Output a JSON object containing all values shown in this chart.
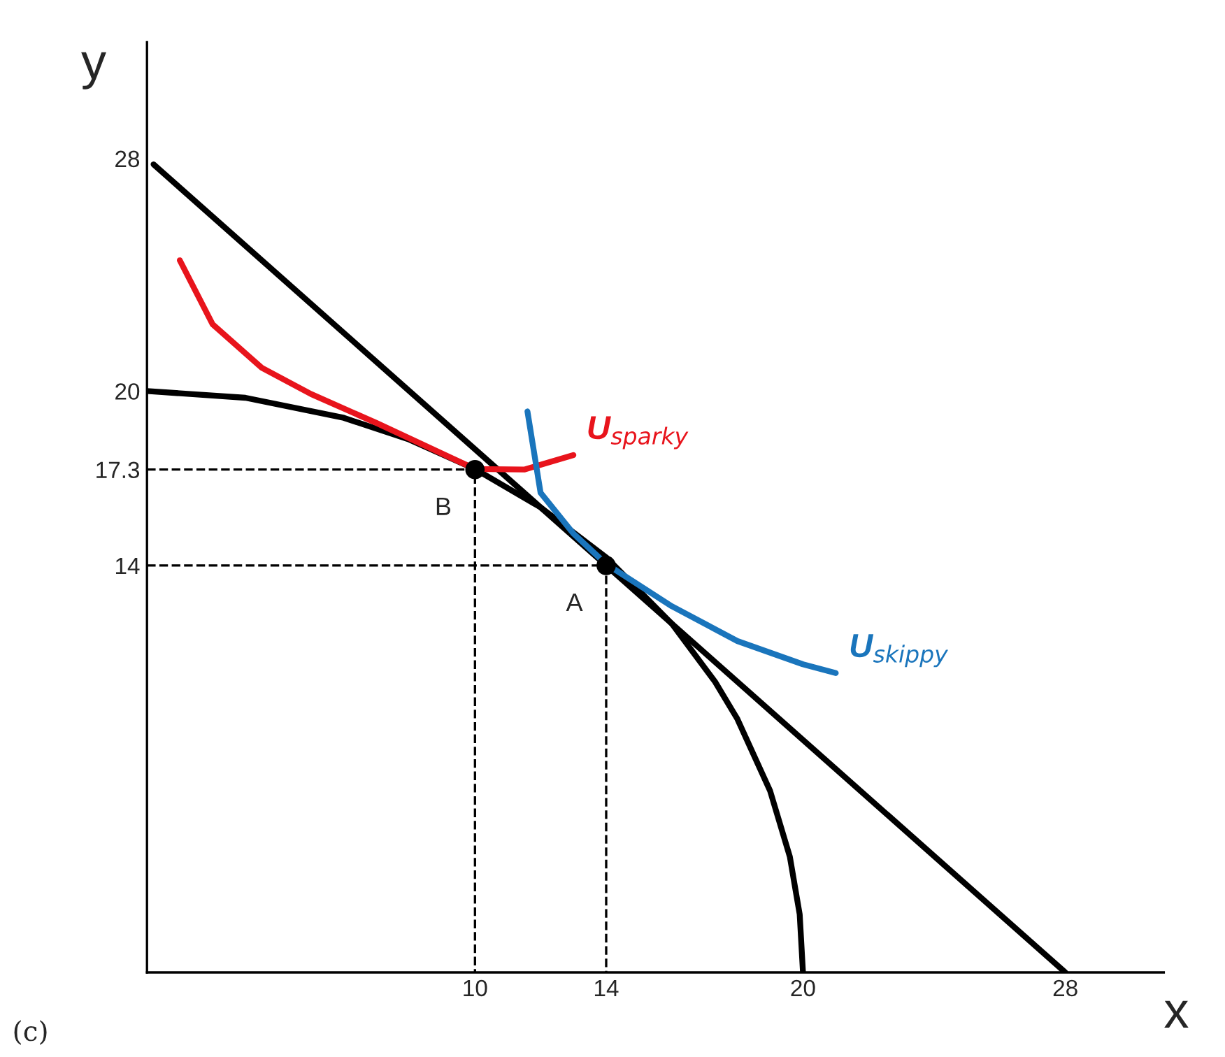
{
  "chart_data": {
    "type": "line",
    "xlabel": "x",
    "ylabel": "y",
    "xlim": [
      0,
      31
    ],
    "ylim": [
      0,
      32
    ],
    "xticks": [
      10,
      14,
      20,
      28
    ],
    "yticks": [
      14,
      17.3,
      20,
      28
    ],
    "grid": false,
    "legend": false,
    "series": [
      {
        "color": "#000000",
        "line_style": "solid",
        "x": [
          0,
          3,
          6,
          8,
          10,
          12,
          14,
          16,
          17.32,
          18,
          19,
          19.6,
          19.9,
          20
        ],
        "values": [
          20,
          19.77,
          19.08,
          18.33,
          17.32,
          16,
          14.28,
          12,
          10,
          8.72,
          6.24,
          3.98,
          2,
          0
        ]
      },
      {
        "color": "#000000",
        "line_style": "solid",
        "x": [
          0.2,
          28
        ],
        "values": [
          27.8,
          0
        ]
      },
      {
        "name": "U$_{sparky}$",
        "color": "#e8141c",
        "line_style": "solid",
        "x": [
          1,
          2,
          3.5,
          5,
          7,
          10,
          11.5,
          13
        ],
        "values": [
          24.5,
          22.3,
          20.8,
          19.9,
          18.9,
          17.32,
          17.3,
          17.8
        ]
      },
      {
        "name": "U$_{skippy}$",
        "color": "#1a75bc",
        "line_style": "solid",
        "x": [
          11.6,
          12,
          13,
          14,
          16,
          18,
          20,
          21
        ],
        "values": [
          19.3,
          16.5,
          15.1,
          14.05,
          12.6,
          11.4,
          10.6,
          10.3
        ]
      },
      {
        "color": "#000000",
        "line_style": "dashed",
        "x": [
          0,
          10,
          10
        ],
        "values": [
          17.3,
          17.3,
          0
        ]
      },
      {
        "color": "#000000",
        "line_style": "dashed",
        "x": [
          0,
          14,
          14
        ],
        "values": [
          14,
          14,
          0
        ]
      },
      {
        "type": "scatter",
        "color": "#000000",
        "marker": "circle",
        "x": [
          10,
          14
        ],
        "values": [
          17.3,
          14
        ]
      }
    ],
    "annotations": [
      {
        "text": "B",
        "x": 10,
        "y": 17.3
      },
      {
        "text": "A",
        "x": 14,
        "y": 14
      },
      "(c)"
    ]
  }
}
